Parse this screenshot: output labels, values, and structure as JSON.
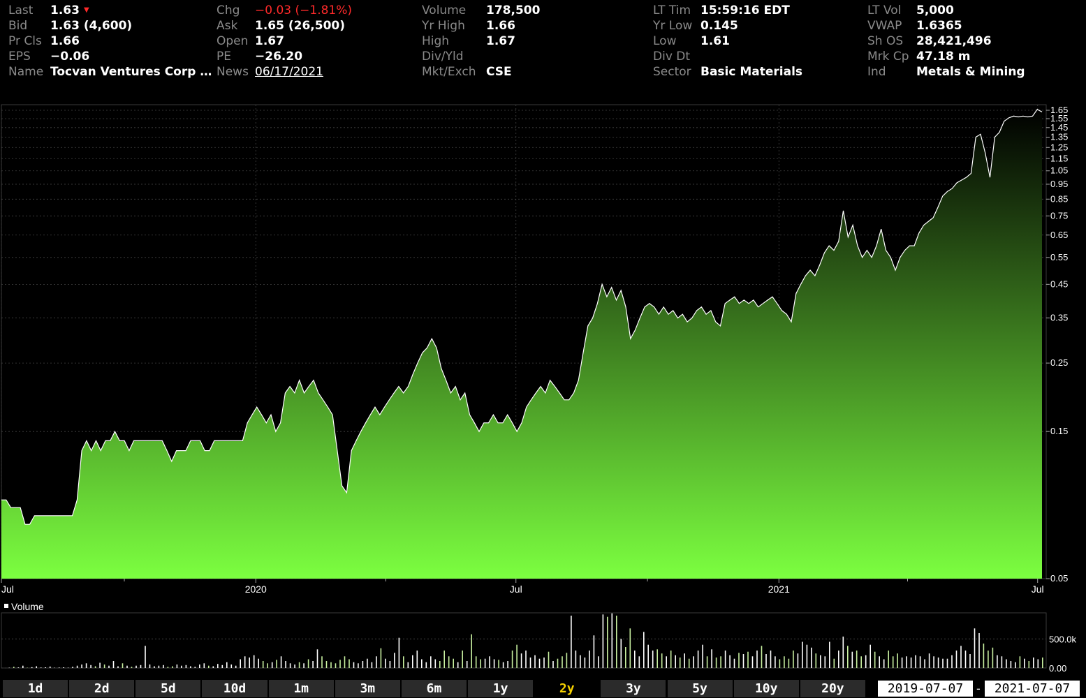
{
  "quote": {
    "col1": [
      {
        "label": "Last",
        "value": "1.63",
        "arrow": "▼"
      },
      {
        "label": "Bid",
        "value": "1.63 (4,600)"
      },
      {
        "label": "Pr Cls",
        "value": "1.66"
      },
      {
        "label": "EPS",
        "value": "−0.06"
      },
      {
        "label": "Name",
        "value": "Tocvan Ventures Corp …"
      }
    ],
    "col2": [
      {
        "label": "Chg",
        "value": "−0.03 (−1.81%)",
        "style": "neg"
      },
      {
        "label": "Ask",
        "value": "1.65 (26,500)"
      },
      {
        "label": "Open",
        "value": "1.67"
      },
      {
        "label": "PE",
        "value": "−26.20"
      },
      {
        "label": "News",
        "value": "06/17/2021",
        "style": "link"
      }
    ],
    "col3": [
      {
        "label": "Volume",
        "value": "178,500"
      },
      {
        "label": "Yr High",
        "value": "1.66"
      },
      {
        "label": "High",
        "value": "1.67"
      },
      {
        "label": "Div/Yld",
        "value": ""
      },
      {
        "label": "Mkt/Exch",
        "value": "CSE"
      }
    ],
    "col4": [
      {
        "label": "LT Tim",
        "value": "15:59:16 EDT"
      },
      {
        "label": "Yr Low",
        "value": "0.145"
      },
      {
        "label": "Low",
        "value": "1.61"
      },
      {
        "label": "Div Dt",
        "value": ""
      },
      {
        "label": "Sector",
        "value": "Basic Materials"
      }
    ],
    "col5": [
      {
        "label": "LT Vol",
        "value": "5,000"
      },
      {
        "label": "VWAP",
        "value": "1.6365"
      },
      {
        "label": "Sh OS",
        "value": "28,421,496"
      },
      {
        "label": "Mrk Cp",
        "value": "47.18 m"
      },
      {
        "label": "Ind",
        "value": "Metals & Mining"
      }
    ]
  },
  "chart_data": {
    "type": "area",
    "x_range": [
      "2019-07-07",
      "2021-07-07"
    ],
    "x_ticks": [
      "Jul",
      "2020",
      "Jul",
      "2021",
      "Jul"
    ],
    "y_ticks": [
      "1.65",
      "1.55",
      "1.45",
      "1.35",
      "1.25",
      "1.15",
      "1.05",
      "0.95",
      "0.85",
      "0.75",
      "0.65",
      "0.55",
      "0.45",
      "0.35",
      "0.25",
      "0.15",
      "0.05"
    ],
    "y_scale": "log",
    "grid": true,
    "colors": {
      "area_bottom": "#7cff40",
      "area_top": "#000000",
      "line": "#ffffff",
      "volume_up": "#ffffff",
      "volume_down": "#c8f0a0"
    },
    "series": [
      {
        "values": [
          0.09,
          0.09,
          0.085,
          0.085,
          0.085,
          0.075,
          0.075,
          0.08,
          0.08,
          0.08,
          0.08,
          0.08,
          0.08,
          0.08,
          0.08,
          0.08,
          0.09,
          0.13,
          0.14,
          0.13,
          0.14,
          0.13,
          0.14,
          0.14,
          0.15,
          0.14,
          0.14,
          0.13,
          0.14,
          0.14,
          0.14,
          0.14,
          0.14,
          0.14,
          0.14,
          0.13,
          0.12,
          0.13,
          0.13,
          0.13,
          0.14,
          0.14,
          0.14,
          0.13,
          0.13,
          0.14,
          0.14,
          0.14,
          0.14,
          0.14,
          0.14,
          0.14,
          0.16,
          0.17,
          0.18,
          0.17,
          0.16,
          0.17,
          0.15,
          0.16,
          0.2,
          0.21,
          0.2,
          0.22,
          0.2,
          0.21,
          0.22,
          0.2,
          0.19,
          0.18,
          0.17,
          0.13,
          0.1,
          0.095,
          0.13,
          0.14,
          0.15,
          0.16,
          0.17,
          0.18,
          0.17,
          0.18,
          0.19,
          0.2,
          0.21,
          0.2,
          0.21,
          0.23,
          0.25,
          0.27,
          0.28,
          0.3,
          0.28,
          0.24,
          0.22,
          0.2,
          0.21,
          0.19,
          0.2,
          0.17,
          0.16,
          0.15,
          0.16,
          0.16,
          0.17,
          0.16,
          0.16,
          0.17,
          0.16,
          0.15,
          0.16,
          0.18,
          0.19,
          0.2,
          0.21,
          0.2,
          0.22,
          0.21,
          0.2,
          0.19,
          0.19,
          0.2,
          0.22,
          0.27,
          0.33,
          0.35,
          0.39,
          0.45,
          0.41,
          0.44,
          0.4,
          0.43,
          0.38,
          0.3,
          0.32,
          0.35,
          0.38,
          0.39,
          0.38,
          0.36,
          0.38,
          0.36,
          0.37,
          0.35,
          0.36,
          0.34,
          0.35,
          0.37,
          0.38,
          0.36,
          0.37,
          0.34,
          0.33,
          0.39,
          0.4,
          0.41,
          0.39,
          0.4,
          0.39,
          0.4,
          0.38,
          0.39,
          0.4,
          0.41,
          0.39,
          0.37,
          0.36,
          0.34,
          0.42,
          0.45,
          0.48,
          0.5,
          0.48,
          0.52,
          0.57,
          0.6,
          0.58,
          0.62,
          0.78,
          0.64,
          0.7,
          0.6,
          0.55,
          0.58,
          0.55,
          0.6,
          0.68,
          0.58,
          0.55,
          0.5,
          0.55,
          0.58,
          0.6,
          0.6,
          0.66,
          0.7,
          0.72,
          0.74,
          0.8,
          0.87,
          0.9,
          0.92,
          0.96,
          0.98,
          1.0,
          1.03,
          1.35,
          1.38,
          1.2,
          1.0,
          1.35,
          1.4,
          1.52,
          1.56,
          1.58,
          1.57,
          1.58,
          1.57,
          1.58,
          1.66,
          1.63
        ]
      }
    ],
    "volume": {
      "label": "Volume",
      "y_ticks": [
        "500.0k",
        "0.00"
      ],
      "ymax": 900000,
      "values": [
        0,
        5000,
        20000,
        10000,
        40000,
        5000,
        15000,
        30000,
        8000,
        12000,
        25000,
        5000,
        8000,
        12000,
        6000,
        20000,
        40000,
        60000,
        80000,
        50000,
        30000,
        90000,
        60000,
        40000,
        120000,
        30000,
        80000,
        40000,
        20000,
        40000,
        50000,
        380000,
        60000,
        30000,
        40000,
        50000,
        20000,
        30000,
        60000,
        40000,
        50000,
        30000,
        20000,
        60000,
        80000,
        40000,
        30000,
        70000,
        50000,
        100000,
        60000,
        40000,
        150000,
        200000,
        180000,
        220000,
        160000,
        120000,
        80000,
        100000,
        140000,
        200000,
        120000,
        80000,
        60000,
        100000,
        80000,
        150000,
        120000,
        320000,
        200000,
        120000,
        100000,
        80000,
        140000,
        200000,
        150000,
        100000,
        80000,
        120000,
        160000,
        100000,
        200000,
        340000,
        160000,
        120000,
        260000,
        520000,
        200000,
        100000,
        220000,
        300000,
        150000,
        100000,
        200000,
        150000,
        120000,
        300000,
        200000,
        160000,
        100000,
        300000,
        120000,
        580000,
        200000,
        150000,
        160000,
        200000,
        150000,
        140000,
        100000,
        120000,
        300000,
        400000,
        250000,
        300000,
        180000,
        220000,
        160000,
        180000,
        280000,
        120000,
        160000,
        200000,
        260000,
        900000,
        300000,
        220000,
        180000,
        300000,
        560000,
        200000,
        920000,
        880000,
        940000,
        900000,
        500000,
        360000,
        680000,
        300000,
        200000,
        620000,
        400000,
        300000,
        320000,
        250000,
        200000,
        300000,
        220000,
        180000,
        250000,
        160000,
        200000,
        300000,
        400000,
        200000,
        320000,
        180000,
        200000,
        300000,
        220000,
        160000,
        260000,
        240000,
        280000,
        200000,
        300000,
        380000,
        240000,
        300000,
        200000,
        150000,
        200000,
        160000,
        300000,
        250000,
        450000,
        400000,
        350000,
        250000,
        220000,
        200000,
        450000,
        160000,
        300000,
        540000,
        380000,
        280000,
        300000,
        200000,
        220000,
        400000,
        280000,
        200000,
        150000,
        300000,
        200000,
        250000,
        180000,
        200000,
        180000,
        220000,
        200000,
        150000,
        250000,
        200000,
        180000,
        160000,
        160000,
        220000,
        300000,
        380000,
        300000,
        240000,
        680000,
        600000,
        420000,
        300000,
        350000,
        220000,
        200000,
        150000,
        120000,
        100000,
        200000,
        160000,
        120000,
        180000,
        150000,
        180000
      ]
    }
  },
  "ranges": {
    "buttons": [
      "1d",
      "2d",
      "5d",
      "10d",
      "1m",
      "3m",
      "6m",
      "1y",
      "2y",
      "3y",
      "5y",
      "10y",
      "20y"
    ],
    "active": "2y",
    "start": "2019-07-07",
    "sep": "-",
    "end": "2021-07-07"
  }
}
